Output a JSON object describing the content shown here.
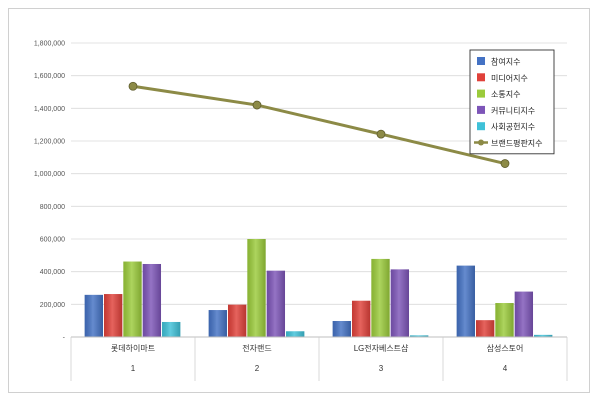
{
  "chart_data": {
    "type": "bar",
    "categories": [
      "롯데하이마트",
      "전자랜드",
      "LG전자베스트샵",
      "삼성스토어"
    ],
    "category_index": [
      "1",
      "2",
      "3",
      "4"
    ],
    "ylim": [
      0,
      1800000
    ],
    "y_ticks": [
      0,
      200000,
      400000,
      600000,
      800000,
      1000000,
      1200000,
      1400000,
      1600000,
      1800000
    ],
    "y_tick_labels": [
      "-",
      "200,000",
      "400,000",
      "600,000",
      "800,000",
      "1,000,000",
      "1,200,000",
      "1,400,000",
      "1,600,000",
      "1,800,000"
    ],
    "grid": true,
    "legend_position": "top-right",
    "series": [
      {
        "name": "참여지수",
        "type": "bar",
        "color": "#4472C4",
        "values": [
          258000,
          165000,
          98000,
          437000
        ]
      },
      {
        "name": "미디어지수",
        "type": "bar",
        "color": "#E0413A",
        "values": [
          263000,
          198000,
          222000,
          103000
        ]
      },
      {
        "name": "소통지수",
        "type": "bar",
        "color": "#9BCB3B",
        "values": [
          462000,
          600000,
          478000,
          208000
        ]
      },
      {
        "name": "커뮤니티지수",
        "type": "bar",
        "color": "#7D55B8",
        "values": [
          447000,
          406000,
          414000,
          278000
        ]
      },
      {
        "name": "사회공헌지수",
        "type": "bar",
        "color": "#3FC1D8",
        "values": [
          92000,
          35000,
          10000,
          13000
        ]
      },
      {
        "name": "브랜드평판지수",
        "type": "line",
        "color": "#8C8A46",
        "values": [
          1535000,
          1420000,
          1242000,
          1062000
        ]
      }
    ]
  }
}
